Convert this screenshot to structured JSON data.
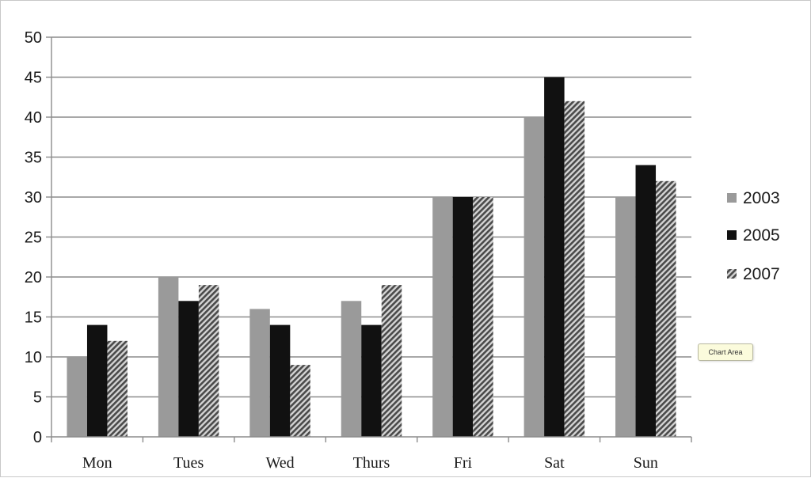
{
  "chart_data": {
    "type": "bar",
    "categories": [
      "Mon",
      "Tues",
      "Wed",
      "Thurs",
      "Fri",
      "Sat",
      "Sun"
    ],
    "series": [
      {
        "name": "2003",
        "values": [
          10,
          20,
          16,
          17,
          30,
          40,
          30
        ],
        "color": "#9a9a9a",
        "pattern": "solid"
      },
      {
        "name": "2005",
        "values": [
          14,
          17,
          14,
          14,
          30,
          45,
          34
        ],
        "color": "#111111",
        "pattern": "solid"
      },
      {
        "name": "2007",
        "values": [
          12,
          19,
          9,
          19,
          30,
          42,
          32
        ],
        "color": "#7a7a7a",
        "pattern": "diagonal-stripes"
      }
    ],
    "ylim": [
      0,
      50
    ],
    "yticks": [
      0,
      5,
      10,
      15,
      20,
      25,
      30,
      35,
      40,
      45,
      50
    ],
    "grid": true,
    "legend_position": "right"
  },
  "tooltip": {
    "label": "Chart Area"
  }
}
